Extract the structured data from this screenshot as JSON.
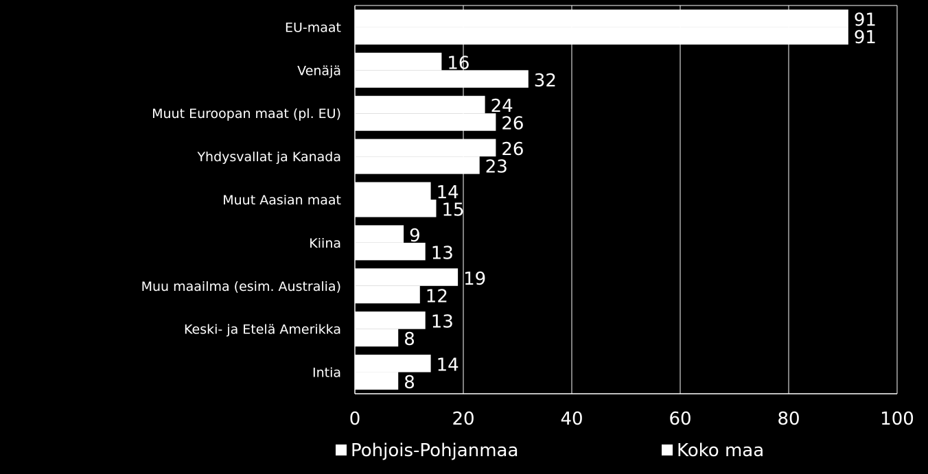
{
  "chart_data": {
    "type": "bar",
    "orientation": "horizontal",
    "categories": [
      "EU-maat",
      "Venäjä",
      "Muut Euroopan maat (pl. EU)",
      "Yhdysvallat ja Kanada",
      "Muut Aasian maat",
      "Kiina",
      "Muu maailma (esim. Australia)",
      "Keski- ja Etelä Amerikka",
      "Intia"
    ],
    "series": [
      {
        "name": "Pohjois-Pohjanmaa",
        "values": [
          91,
          16,
          24,
          26,
          14,
          9,
          19,
          13,
          14
        ]
      },
      {
        "name": "Koko maa",
        "values": [
          91,
          32,
          26,
          23,
          15,
          13,
          12,
          8,
          8
        ]
      }
    ],
    "xlim": [
      0,
      100
    ],
    "xticks": [
      "0",
      "20",
      "40",
      "60",
      "80",
      "100"
    ],
    "grid": true,
    "legend_position": "bottom",
    "colors": {
      "background": "#000000",
      "bar": "#ffffff",
      "text": "#ffffff",
      "grid": "#ffffff"
    }
  }
}
